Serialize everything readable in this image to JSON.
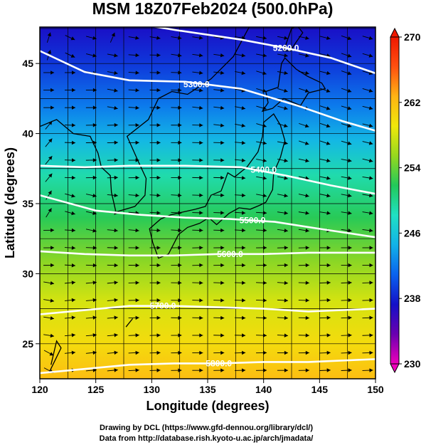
{
  "chart_data": {
    "type": "heatmap",
    "title": "MSM 18Z07Feb2024 (500.0hPa)",
    "xlabel": "Longitude (degrees)",
    "ylabel": "Latitude  (degrees)",
    "xlim": [
      120,
      150
    ],
    "ylim": [
      22.5,
      47.6
    ],
    "x_ticks": [
      120,
      125,
      130,
      135,
      140,
      145,
      150
    ],
    "y_ticks": [
      25,
      30,
      35,
      40,
      45
    ],
    "colorbar": {
      "range": [
        230,
        270
      ],
      "labeled_ticks": [
        230,
        238,
        246,
        254,
        262,
        270
      ],
      "colors": [
        "#ee00bb",
        "#6a00b0",
        "#1410c8",
        "#0a62ee",
        "#12b2e8",
        "#20e0c4",
        "#22c95a",
        "#96d81e",
        "#f0e80a",
        "#ffb414",
        "#ff5010",
        "#f01800"
      ]
    },
    "temperature_bands": [
      {
        "lat": 47.6,
        "value": 237
      },
      {
        "lat": 45.0,
        "value": 239
      },
      {
        "lat": 42.0,
        "value": 242
      },
      {
        "lat": 39.5,
        "value": 245
      },
      {
        "lat": 37.0,
        "value": 249
      },
      {
        "lat": 34.0,
        "value": 252
      },
      {
        "lat": 31.0,
        "value": 255
      },
      {
        "lat": 28.0,
        "value": 258
      },
      {
        "lat": 25.0,
        "value": 260
      },
      {
        "lat": 22.5,
        "value": 262
      }
    ],
    "height_contours": [
      {
        "label": "5200.0",
        "value": 5200,
        "points": [
          [
            126,
            48.2
          ],
          [
            132,
            47.4
          ],
          [
            138,
            46.7
          ],
          [
            142,
            46.1
          ],
          [
            146,
            45.4
          ],
          [
            150,
            44.3
          ]
        ],
        "label_at": [
          142,
          46.1
        ]
      },
      {
        "label": "5300.0",
        "value": 5300,
        "points": [
          [
            120,
            45.9
          ],
          [
            124,
            44.4
          ],
          [
            128,
            43.8
          ],
          [
            133,
            43.7
          ],
          [
            138,
            43.2
          ],
          [
            143,
            42.0
          ],
          [
            147,
            40.9
          ],
          [
            150,
            40.2
          ]
        ],
        "label_at": [
          134,
          43.5
        ]
      },
      {
        "label": "5400.0",
        "value": 5400,
        "points": [
          [
            120,
            37.7
          ],
          [
            124,
            37.6
          ],
          [
            128,
            37.7
          ],
          [
            133,
            37.7
          ],
          [
            138,
            37.6
          ],
          [
            142,
            37.0
          ],
          [
            146,
            36.3
          ],
          [
            150,
            35.7
          ]
        ],
        "label_at": [
          140,
          37.4
        ]
      },
      {
        "label": "5500.0",
        "value": 5500,
        "points": [
          [
            120,
            35.6
          ],
          [
            125,
            34.5
          ],
          [
            129,
            34.2
          ],
          [
            133,
            34.0
          ],
          [
            137,
            33.9
          ],
          [
            141,
            33.7
          ],
          [
            145,
            33.2
          ],
          [
            150,
            32.6
          ]
        ],
        "label_at": [
          139,
          33.8
        ]
      },
      {
        "label": "5600.0",
        "value": 5600,
        "points": [
          [
            120,
            31.6
          ],
          [
            124,
            31.4
          ],
          [
            128,
            31.3
          ],
          [
            132,
            31.3
          ],
          [
            136,
            31.4
          ],
          [
            140,
            31.4
          ],
          [
            144,
            31.5
          ],
          [
            150,
            31.5
          ]
        ],
        "label_at": [
          137,
          31.4
        ]
      },
      {
        "label": "5700.0",
        "value": 5700,
        "points": [
          [
            120,
            27.1
          ],
          [
            124,
            27.4
          ],
          [
            128,
            27.7
          ],
          [
            132,
            27.7
          ],
          [
            136,
            27.6
          ],
          [
            140,
            27.5
          ],
          [
            144,
            27.3
          ],
          [
            150,
            27.5
          ]
        ],
        "label_at": [
          131,
          27.7
        ]
      },
      {
        "label": "5800.0",
        "value": 5800,
        "points": [
          [
            120,
            22.9
          ],
          [
            124,
            23.2
          ],
          [
            128,
            23.5
          ],
          [
            132,
            23.6
          ],
          [
            136,
            23.6
          ],
          [
            140,
            23.7
          ],
          [
            144,
            23.7
          ],
          [
            150,
            23.9
          ]
        ],
        "label_at": [
          136,
          23.6
        ]
      }
    ],
    "wind": {
      "direction": "westerly",
      "vectors": "dense field of black streamline arrows"
    }
  },
  "credits": {
    "line1": "Drawing by DCL (https://www.gfd-dennou.org/library/dcl/)",
    "line2": "Data from http://database.rish.kyoto-u.ac.jp/arch/jmadata/"
  }
}
